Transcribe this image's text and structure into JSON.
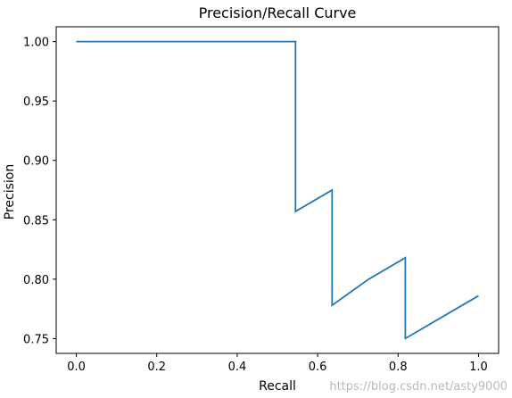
{
  "chart_data": {
    "type": "line",
    "title": "Precision/Recall Curve",
    "xlabel": "Recall",
    "ylabel": "Precision",
    "xlim": [
      -0.05,
      1.05
    ],
    "ylim": [
      0.7375,
      1.0125
    ],
    "x_ticks": [
      0.0,
      0.2,
      0.4,
      0.6,
      0.8,
      1.0
    ],
    "x_tick_labels": [
      "0.0",
      "0.2",
      "0.4",
      "0.6",
      "0.8",
      "1.0"
    ],
    "y_ticks": [
      0.75,
      0.8,
      0.85,
      0.9,
      0.95,
      1.0
    ],
    "y_tick_labels": [
      "0.75",
      "0.80",
      "0.85",
      "0.90",
      "0.95",
      "1.00"
    ],
    "grid": false,
    "series": [
      {
        "color": "#1f77b4",
        "x": [
          0.0,
          0.545,
          0.545,
          0.636,
          0.636,
          0.727,
          0.818,
          0.818,
          1.0
        ],
        "y": [
          1.0,
          1.0,
          0.857,
          0.875,
          0.778,
          0.8,
          0.818,
          0.75,
          0.786
        ]
      }
    ]
  },
  "watermark": "https://blog.csdn.net/asty9000"
}
